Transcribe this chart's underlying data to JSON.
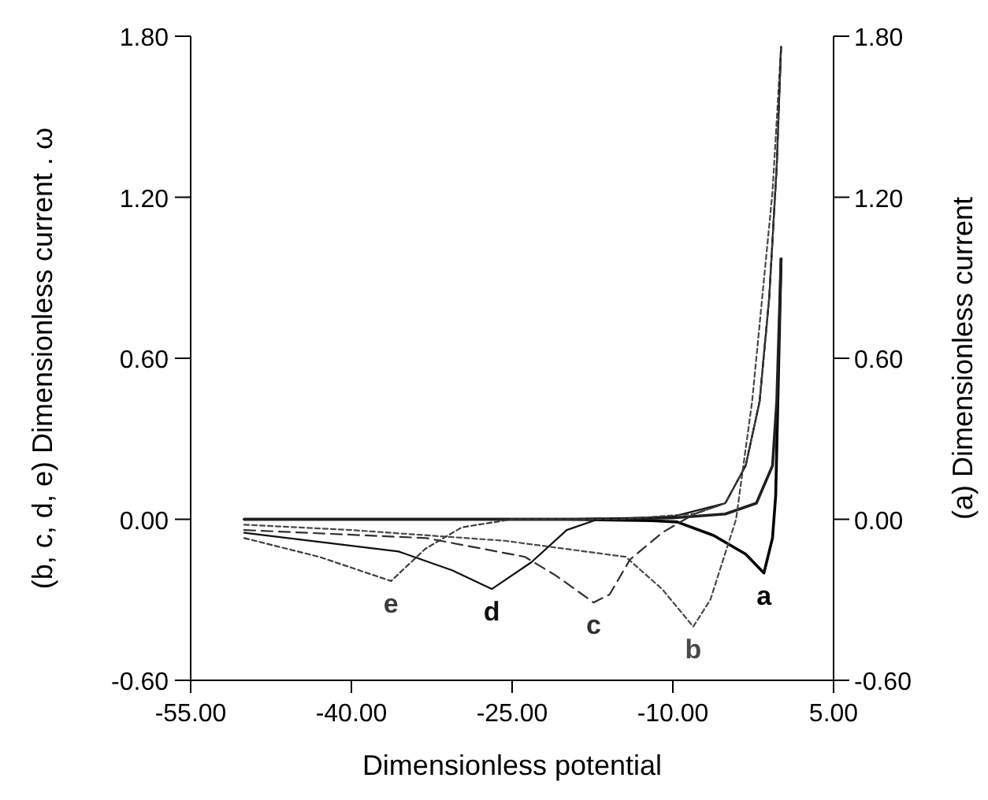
{
  "chart_data": {
    "type": "line",
    "xlabel": "Dimensionless potential",
    "ylabel": "(b, c, d, e) Dimensionless current . ω",
    "y2label": "(a) Dimensionless current",
    "xlim": [
      -55,
      5
    ],
    "xticks": [
      {
        "value": -55,
        "label": "-55.00"
      },
      {
        "value": -40,
        "label": "-40.00"
      },
      {
        "value": -25,
        "label": "-25.00"
      },
      {
        "value": -10,
        "label": "-10.00"
      },
      {
        "value": 5,
        "label": "5.00"
      }
    ],
    "ylim": [
      -0.6,
      1.8
    ],
    "yticks": [
      {
        "value": -0.6,
        "label": "-0.60"
      },
      {
        "value": 0,
        "label": "0.00"
      },
      {
        "value": 0.6,
        "label": "0.60"
      },
      {
        "value": 1.2,
        "label": "1.20"
      },
      {
        "value": 1.8,
        "label": "1.80"
      }
    ],
    "y2lim": [
      -0.6,
      1.8
    ],
    "y2ticks": [
      {
        "value": -0.6,
        "label": "-0.60"
      },
      {
        "value": 0,
        "label": "0.00"
      },
      {
        "value": 0.6,
        "label": "0.60"
      },
      {
        "value": 1.2,
        "label": "1.20"
      },
      {
        "value": 1.8,
        "label": "1.80"
      }
    ],
    "grid": false,
    "marker": "none",
    "series": [
      {
        "name": "a",
        "color": "#000000",
        "axis": "y2",
        "line_style": "solid",
        "x": [
          -50,
          -20,
          -12,
          -9.6,
          -6.2,
          -3.2,
          -1.5,
          -0.7,
          -0.4,
          0.1
        ],
        "values": [
          0,
          0,
          -0.005,
          -0.01,
          -0.06,
          -0.13,
          -0.2,
          -0.07,
          0.09,
          0.97
        ]
      },
      {
        "color": "#202020",
        "axis": "y2",
        "line_style": "solid",
        "x": [
          -50,
          -20,
          -10,
          -5.1,
          -2.2,
          -0.7,
          -0.3,
          0.1
        ],
        "values": [
          0,
          0,
          0.005,
          0.02,
          0.06,
          0.2,
          0.44,
          0.97
        ]
      },
      {
        "name": "b",
        "color": "#484848",
        "line_style": "dotted",
        "x": [
          -50,
          -40,
          -25.7,
          -14.4,
          -11,
          -8.1,
          -6.5,
          -4.1,
          -2.6,
          -0.7,
          0.1
        ],
        "values": [
          -0.02,
          -0.04,
          -0.08,
          -0.14,
          -0.26,
          -0.4,
          -0.3,
          0,
          0.44,
          1.22,
          1.76
        ]
      },
      {
        "name": "c",
        "color": "#303030",
        "line_style": "dashed",
        "x": [
          -50,
          -33,
          -23.8,
          -20.9,
          -17.4,
          -15.9,
          -14,
          -11,
          -8,
          -5.1,
          -3.2,
          -1.9,
          -1,
          -0.3,
          0.1
        ],
        "values": [
          -0.04,
          -0.07,
          -0.14,
          -0.21,
          -0.31,
          -0.28,
          -0.15,
          -0.05,
          0.02,
          0.06,
          0.2,
          0.44,
          0.83,
          1.32,
          1.76
        ]
      },
      {
        "name": "d",
        "color": "#101010",
        "line_style": "solid",
        "x": [
          -50,
          -35.6,
          -30.6,
          -26.9,
          -23.2,
          -19.9,
          -17,
          -10,
          -5.1,
          -3.2,
          -1.9,
          -1,
          -0.3,
          0.1
        ],
        "values": [
          -0.05,
          -0.12,
          -0.19,
          -0.26,
          -0.16,
          -0.04,
          0,
          0.01,
          0.06,
          0.2,
          0.44,
          0.83,
          1.32,
          1.76
        ]
      },
      {
        "name": "e",
        "color": "#3c3c3c",
        "line_style": "dotted",
        "x": [
          -50,
          -43,
          -36.3,
          -33.1,
          -29.7,
          -25,
          -15,
          -8,
          -5.1,
          -3.2,
          -1.9,
          -1,
          -0.3,
          0.1
        ],
        "values": [
          -0.07,
          -0.14,
          -0.23,
          -0.11,
          -0.03,
          0,
          0,
          0.02,
          0.06,
          0.2,
          0.44,
          0.83,
          1.32,
          1.76
        ]
      }
    ]
  }
}
